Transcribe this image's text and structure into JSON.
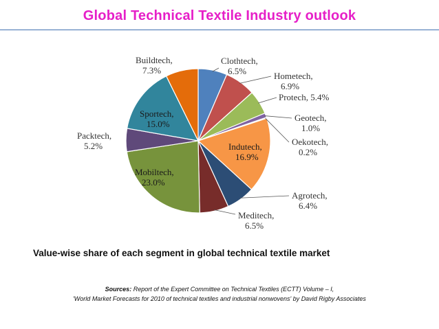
{
  "slide": {
    "title": "Global Technical Textile Industry outlook",
    "caption": "Value-wise share of each segment in global technical textile market",
    "source_heading": "Sources:",
    "source_line1": " Report of the Expert Committee on Technical Textiles (ECTT) Volume – I,",
    "source_line2": "'World Market Forecasts for 2010 of technical textiles and industrial nonwovens' by David Rigby Associates"
  },
  "chart_data": {
    "type": "pie",
    "title": "",
    "start": "12 o'clock, clockwise",
    "slices": [
      {
        "label": "Clothtech",
        "value": 6.5,
        "display": "6.5%",
        "color": "#4f81bd"
      },
      {
        "label": "Hometech",
        "value": 6.9,
        "display": "6.9%",
        "color": "#c0504d"
      },
      {
        "label": "Protech",
        "value": 5.4,
        "display": "5.4%",
        "color": "#9bbb59"
      },
      {
        "label": "Geotech",
        "value": 1.0,
        "display": "1.0%",
        "color": "#8064a2"
      },
      {
        "label": "Oekotech",
        "value": 0.2,
        "display": "0.2%",
        "color": "#4bacc6"
      },
      {
        "label": "Indutech",
        "value": 16.9,
        "display": "16.9%",
        "color": "#f79646"
      },
      {
        "label": "Agrotech",
        "value": 6.4,
        "display": "6.4%",
        "color": "#2c4d75"
      },
      {
        "label": "Meditech",
        "value": 6.5,
        "display": "6.5%",
        "color": "#772c2a"
      },
      {
        "label": "Mobiltech",
        "value": 23.0,
        "display": "23.0%",
        "color": "#77933c"
      },
      {
        "label": "Packtech",
        "value": 5.2,
        "display": "5.2%",
        "color": "#5f497a"
      },
      {
        "label": "Sportech",
        "value": 15.0,
        "display": "15.0%",
        "color": "#31859c"
      },
      {
        "label": "Buildtech",
        "value": 7.3,
        "display": "7.3%",
        "color": "#e46c0a"
      }
    ]
  }
}
